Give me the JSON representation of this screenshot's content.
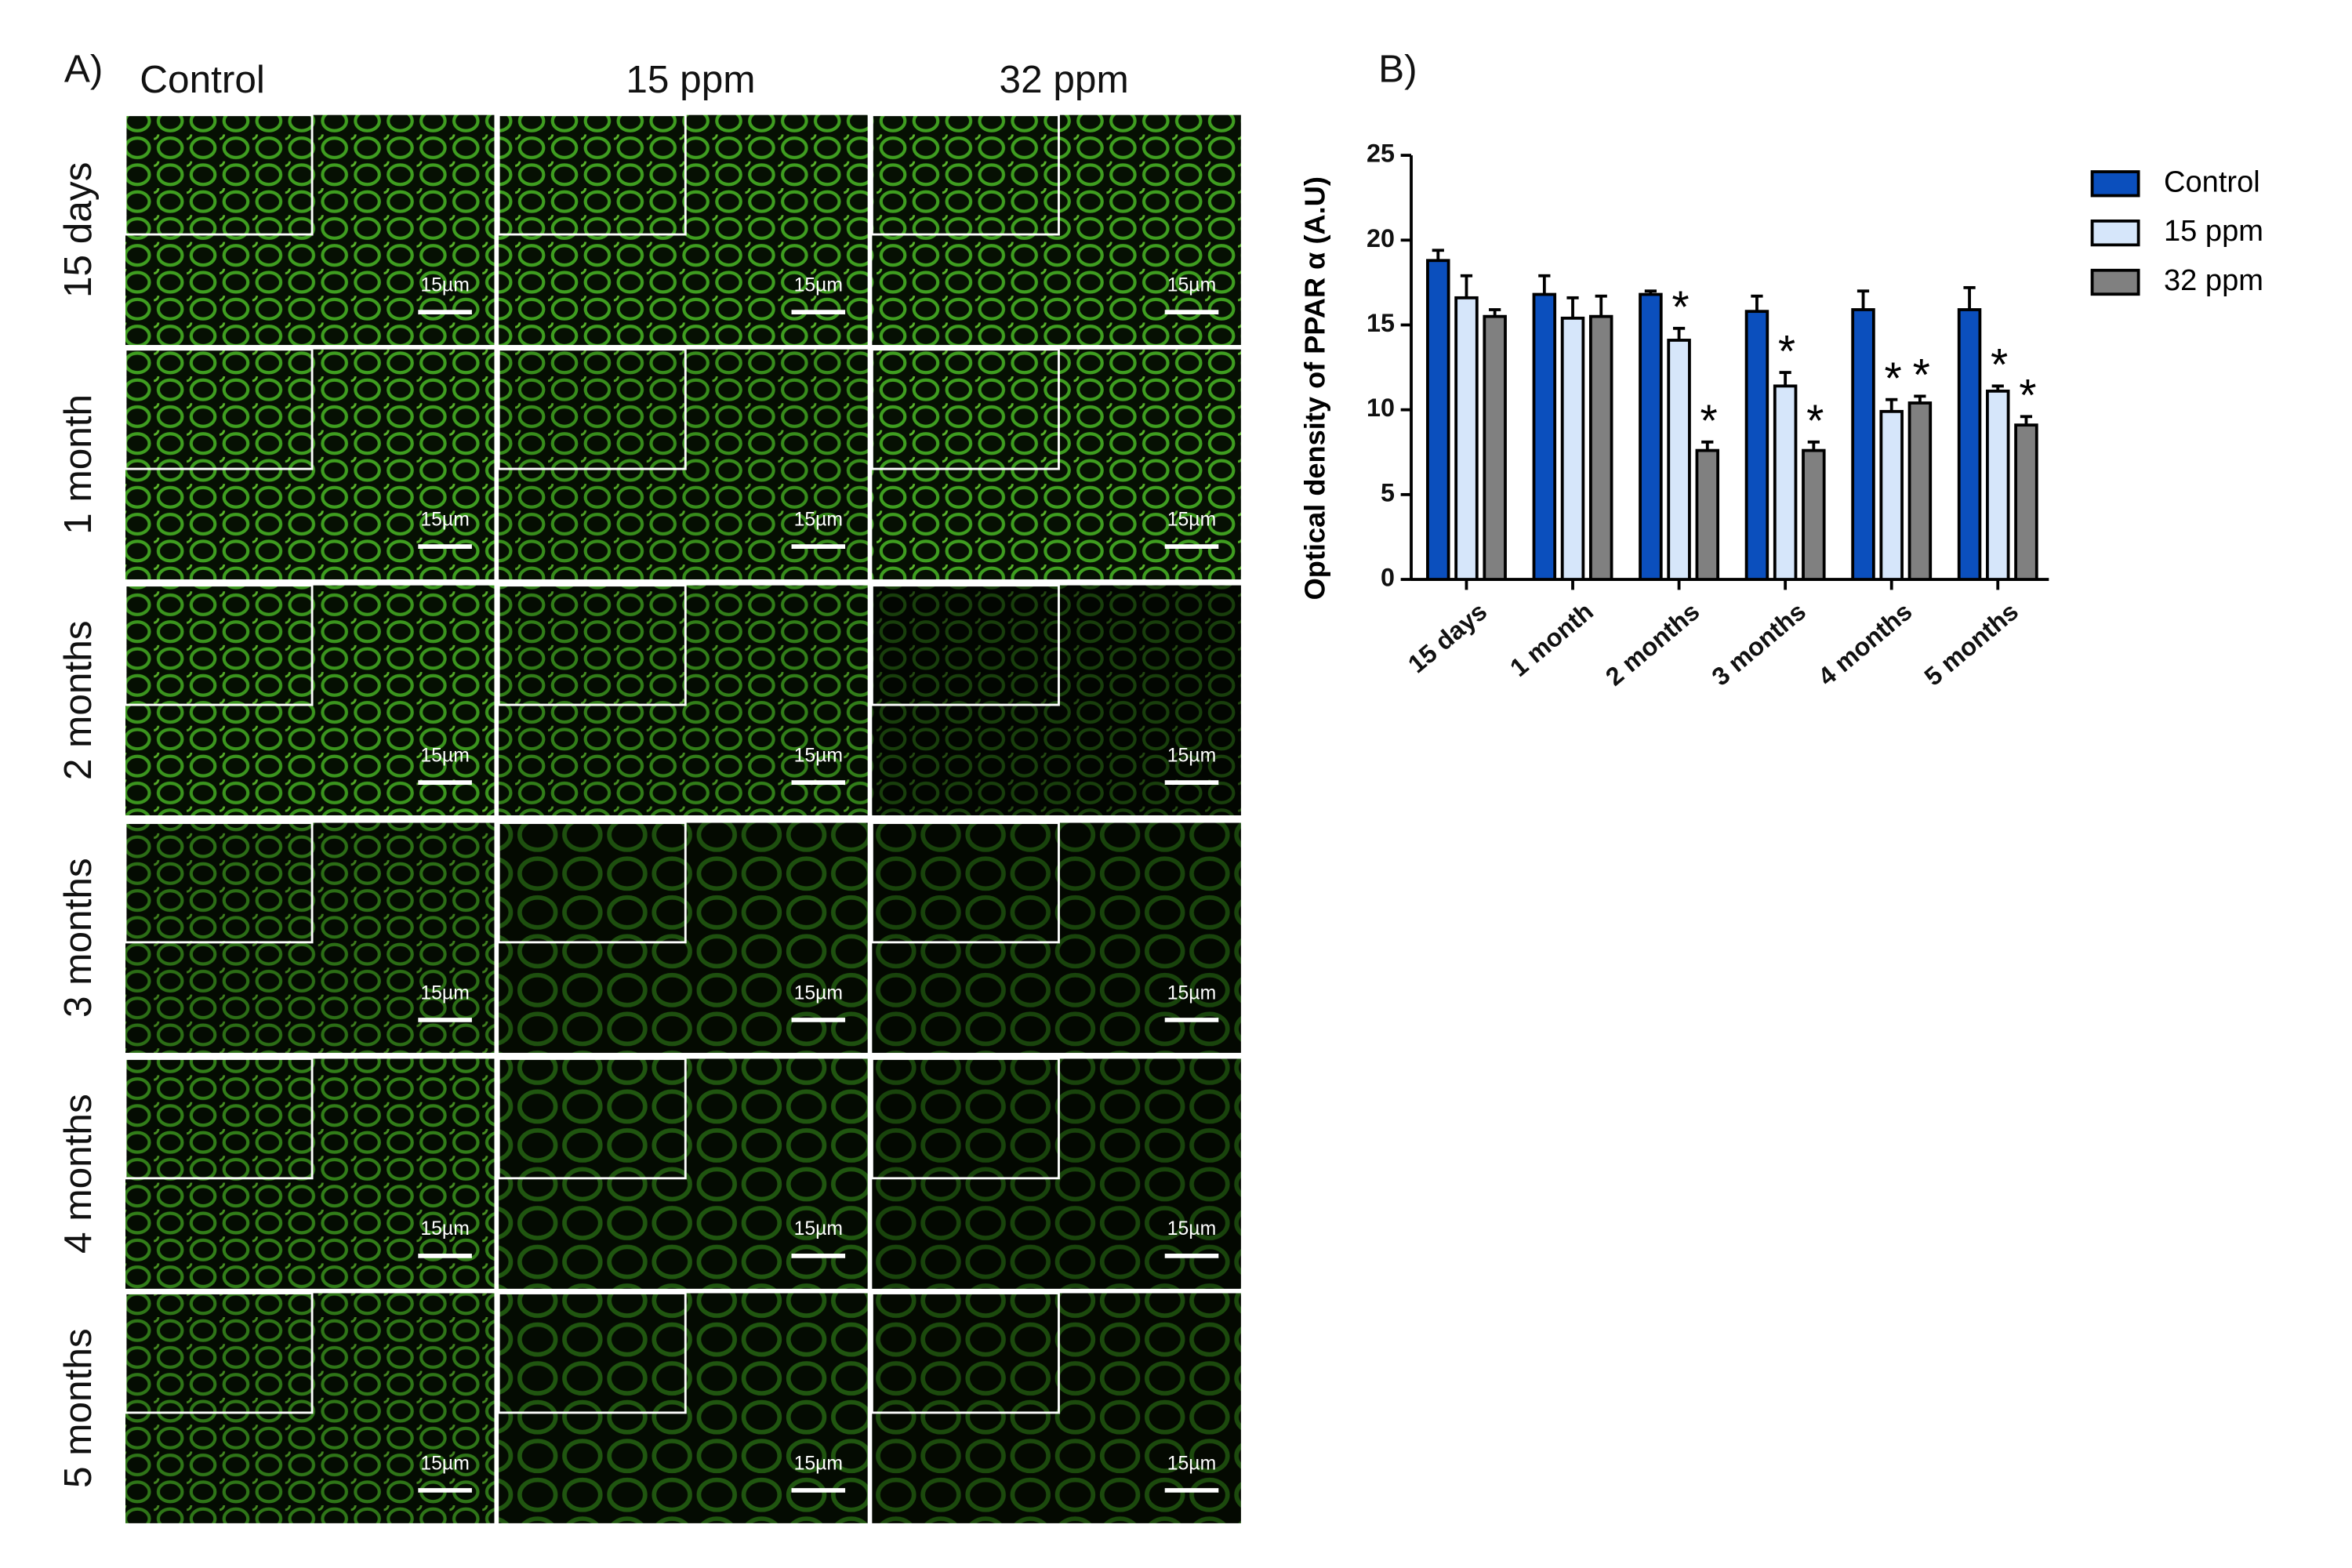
{
  "panel_a": {
    "label": "A)",
    "columns": [
      "Control",
      "15 ppm",
      "32 ppm"
    ],
    "rows": [
      "15 days",
      "1 month",
      "2 months",
      "3 months",
      "4 months",
      "5 months"
    ],
    "scale_bar_label": "15µm"
  },
  "chart_data": {
    "type": "bar",
    "panel_label": "B)",
    "y_label": "Optical density of PPAR α (A.U)",
    "categories": [
      "15 days",
      "1 month",
      "2 months",
      "3 months",
      "4 months",
      "5 months"
    ],
    "series": [
      {
        "name": "Control",
        "color": "#0b4fbd",
        "values": [
          18.8,
          16.8,
          16.8,
          15.8,
          15.9,
          15.9
        ],
        "errors": [
          0.6,
          1.1,
          0.2,
          0.9,
          1.1,
          1.3
        ]
      },
      {
        "name": "15 ppm",
        "color": "#d6e6fa",
        "values": [
          16.6,
          15.4,
          14.1,
          11.4,
          9.9,
          11.1
        ],
        "errors": [
          1.3,
          1.2,
          0.7,
          0.8,
          0.7,
          0.3
        ],
        "markers": [
          null,
          null,
          "*",
          "*",
          "*",
          "*"
        ]
      },
      {
        "name": "32 ppm",
        "color": "#808080",
        "values": [
          15.5,
          15.5,
          7.6,
          7.6,
          10.4,
          9.1
        ],
        "errors": [
          0.4,
          1.2,
          0.5,
          0.5,
          0.4,
          0.5
        ],
        "markers": [
          null,
          null,
          "*",
          "*",
          "*",
          "*"
        ]
      }
    ],
    "ylim": [
      0,
      25
    ],
    "yticks": [
      0,
      5,
      10,
      15,
      20,
      25
    ],
    "legend": "upper right"
  }
}
